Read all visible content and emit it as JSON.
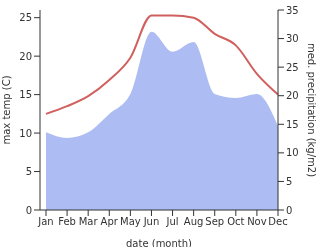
{
  "chart_data": {
    "type": "line",
    "categories": [
      "Jan",
      "Feb",
      "Mar",
      "Apr",
      "May",
      "Jun",
      "Jul",
      "Aug",
      "Sep",
      "Oct",
      "Nov",
      "Dec"
    ],
    "x_label": "date (month)",
    "y_label": "max temp (C)",
    "y2_label": "med. precipitation (kg/m2)",
    "ylim": [
      0,
      26
    ],
    "yticks": [
      0,
      5,
      10,
      15,
      20,
      25
    ],
    "y2lim": [
      0,
      35
    ],
    "y2ticks": [
      0,
      5,
      10,
      15,
      20,
      25,
      30,
      35
    ],
    "series": [
      {
        "name": "max temp (C)",
        "type": "line",
        "color": "#d0605e",
        "values": [
          12.5,
          13.5,
          14.8,
          16.9,
          19.8,
          25.3,
          25.3,
          25.0,
          22.9,
          21.4,
          17.7,
          15.0
        ]
      },
      {
        "name": "med. precipitation (kg/m2)",
        "type": "area",
        "axis": "y2",
        "color": "#adbcf2",
        "values": [
          13.6,
          12.6,
          13.6,
          16.8,
          20.3,
          31.2,
          27.7,
          29.4,
          20.3,
          19.6,
          20.3,
          14.7
        ]
      }
    ]
  }
}
